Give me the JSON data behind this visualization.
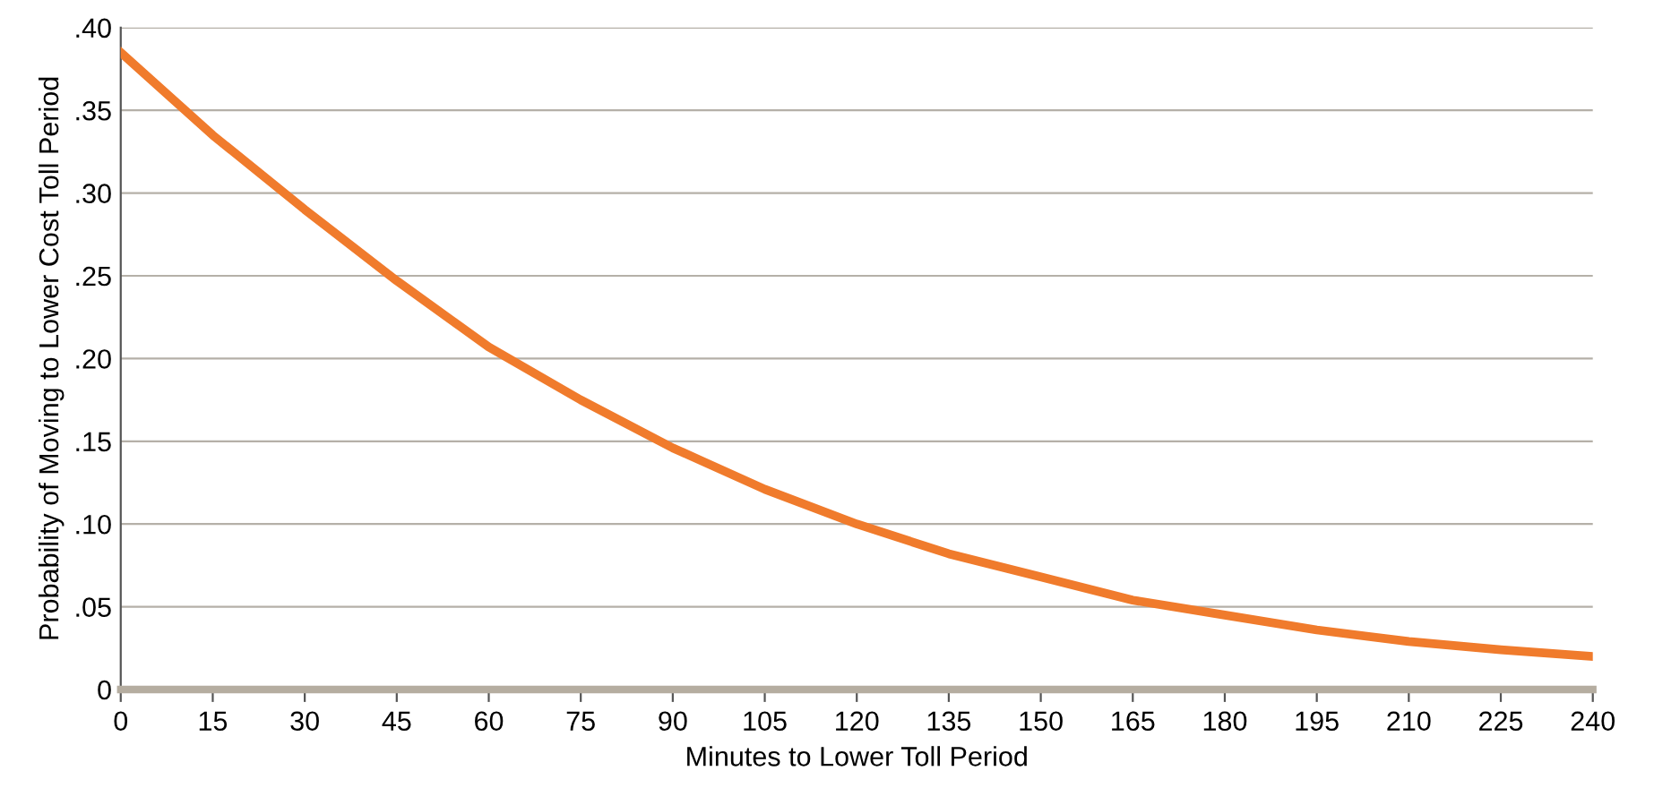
{
  "chart_data": {
    "type": "line",
    "xlabel": "Minutes to Lower Toll Period",
    "ylabel": "Probability of Moving to Lower Cost Toll Period",
    "x": [
      0,
      15,
      30,
      45,
      60,
      75,
      90,
      105,
      120,
      135,
      150,
      165,
      180,
      195,
      210,
      225,
      240
    ],
    "series": [
      {
        "color": "#f07b2c",
        "values": [
          0.385,
          0.335,
          0.29,
          0.247,
          0.207,
          0.175,
          0.146,
          0.121,
          0.1,
          0.082,
          0.068,
          0.054,
          0.045,
          0.036,
          0.029,
          0.024,
          0.02
        ]
      }
    ],
    "xlim": [
      0,
      240
    ],
    "xticks": [
      0,
      15,
      30,
      45,
      60,
      75,
      90,
      105,
      120,
      135,
      150,
      165,
      180,
      195,
      210,
      225,
      240
    ],
    "ylim": [
      0,
      0.4
    ],
    "yticks": [
      {
        "value": 0,
        "label": "0"
      },
      {
        "value": 0.05,
        "label": ".05"
      },
      {
        "value": 0.1,
        "label": ".10"
      },
      {
        "value": 0.15,
        "label": ".15"
      },
      {
        "value": 0.2,
        "label": ".20"
      },
      {
        "value": 0.25,
        "label": ".25"
      },
      {
        "value": 0.3,
        "label": ".30"
      },
      {
        "value": 0.35,
        "label": ".35"
      },
      {
        "value": 0.4,
        "label": ".40"
      }
    ],
    "grid": "y",
    "marker": "none",
    "line_style": "solid"
  }
}
